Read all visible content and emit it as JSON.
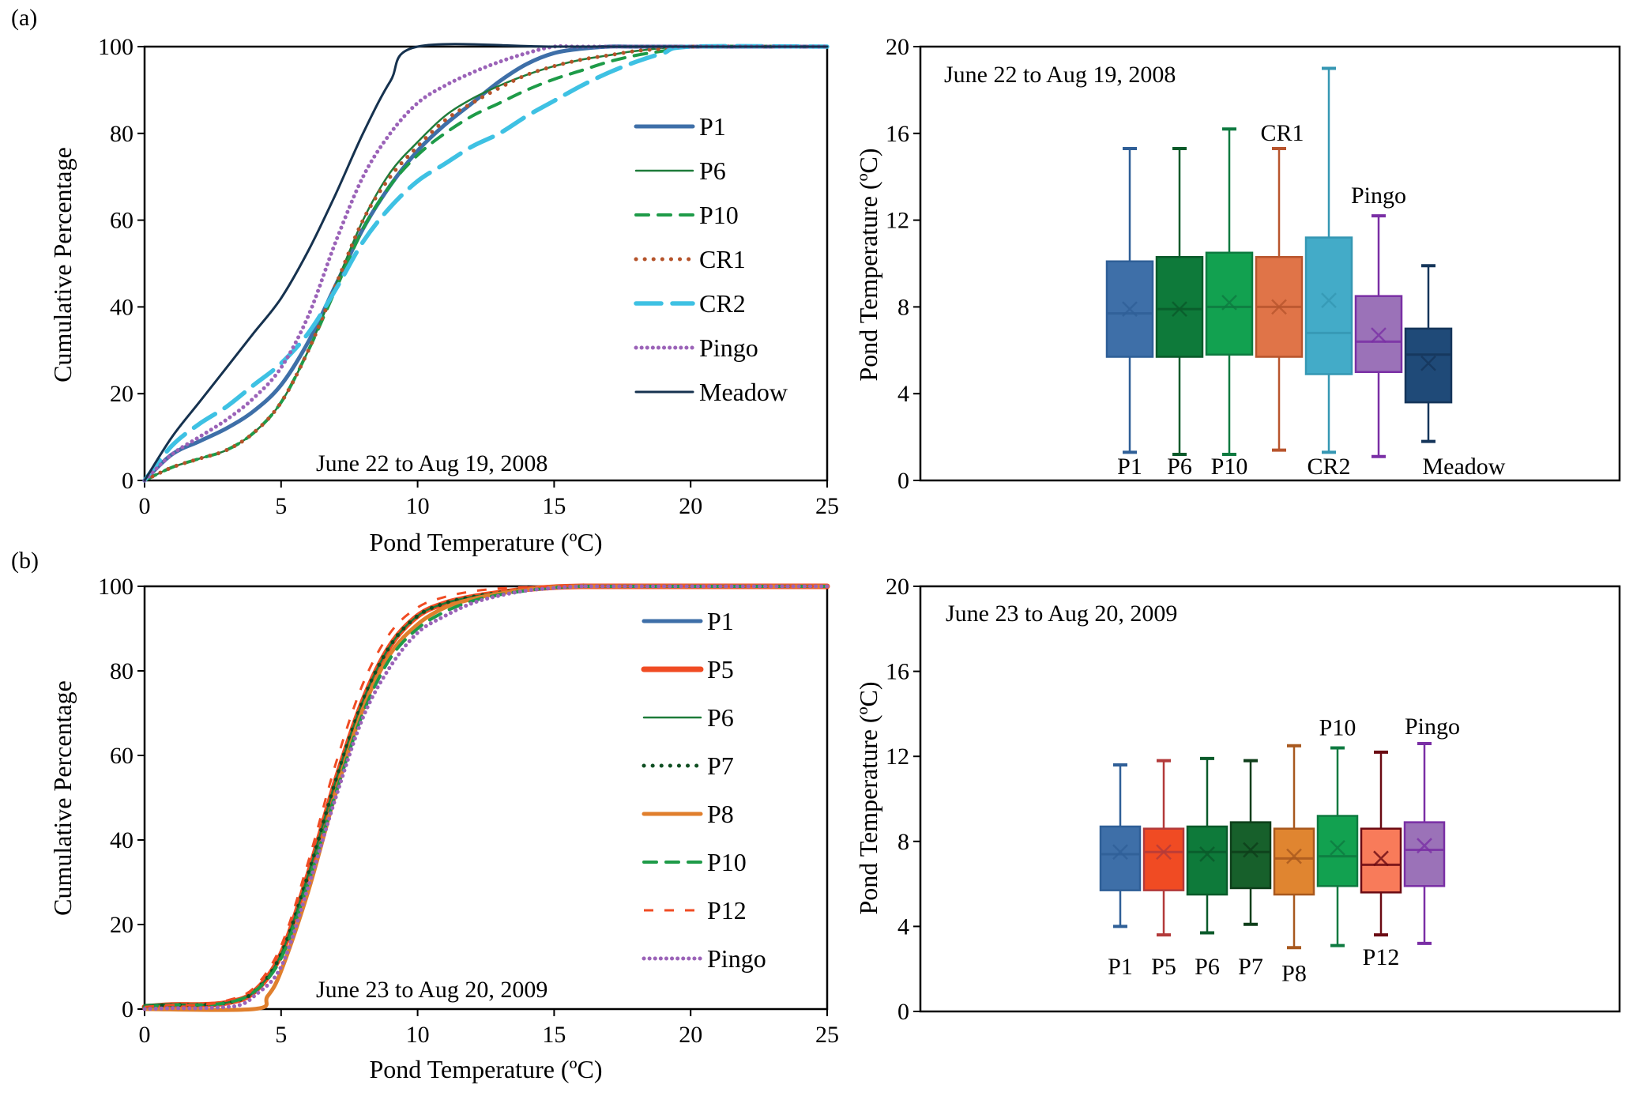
{
  "panels": [
    {
      "label": "(a)"
    },
    {
      "label": "(b)"
    }
  ],
  "chart_data": [
    {
      "id": "a-cdf",
      "type": "line",
      "title": "",
      "annotation": "June 22 to Aug 19, 2008",
      "xlabel": "Pond Temperature (ºC)",
      "ylabel": "Cumulative Percentage",
      "xlim": [
        0,
        25
      ],
      "ylim": [
        0,
        100
      ],
      "xticks": [
        0,
        5,
        10,
        15,
        20,
        25
      ],
      "yticks": [
        0,
        20,
        40,
        60,
        80,
        100
      ],
      "grid": false,
      "legend_position": "right",
      "series": [
        {
          "name": "P1",
          "color": "#3E6FA8",
          "style": "solid-thick",
          "x": [
            0,
            1,
            2,
            3,
            4,
            5,
            6,
            7,
            8,
            9,
            10,
            11,
            12,
            13,
            14,
            15,
            16,
            17,
            18,
            20,
            25
          ],
          "y": [
            0,
            6,
            9,
            12,
            16,
            22,
            32,
            45,
            58,
            68,
            76,
            82,
            87,
            92,
            96,
            98.5,
            99.5,
            100,
            100,
            100,
            100
          ]
        },
        {
          "name": "P6",
          "color": "#1E7B3A",
          "style": "solid-thin",
          "x": [
            0,
            1,
            2,
            3,
            4,
            5,
            6,
            7,
            8,
            9,
            10,
            11,
            12,
            13,
            14,
            15,
            16,
            17,
            18,
            20,
            25
          ],
          "y": [
            0,
            3,
            5,
            7,
            11,
            18,
            30,
            45,
            60,
            71,
            78,
            84,
            88,
            91,
            93.5,
            95.5,
            97,
            98,
            99,
            100,
            100
          ]
        },
        {
          "name": "P10",
          "color": "#1E9B48",
          "style": "dashed",
          "x": [
            0,
            1,
            2,
            3,
            4,
            5,
            6,
            7,
            8,
            9,
            10,
            11,
            12,
            13,
            14,
            15,
            16,
            17,
            18,
            19,
            20,
            25
          ],
          "y": [
            0,
            3,
            5,
            7,
            11,
            18,
            30,
            44,
            58,
            68,
            75,
            80,
            84,
            87,
            90,
            92.5,
            94.5,
            96.5,
            98,
            99,
            100,
            100
          ]
        },
        {
          "name": "CR1",
          "color": "#B5532A",
          "style": "dotted",
          "x": [
            0,
            1,
            2,
            3,
            4,
            5,
            6,
            7,
            8,
            9,
            10,
            11,
            12,
            13,
            14,
            15,
            16,
            17,
            18,
            19,
            20,
            25
          ],
          "y": [
            0,
            3,
            5,
            7,
            11,
            18,
            30,
            45,
            60,
            70,
            77,
            83,
            87,
            90.5,
            93.5,
            95.5,
            97,
            98,
            99,
            99.5,
            100,
            100
          ]
        },
        {
          "name": "CR2",
          "color": "#3EC1E3",
          "style": "long-dashed",
          "x": [
            0,
            1,
            2,
            3,
            4,
            5,
            6,
            7,
            8,
            9,
            10,
            11,
            12,
            13,
            14,
            15,
            16,
            17,
            18,
            19,
            20,
            25
          ],
          "y": [
            0,
            8,
            13,
            17,
            22,
            27,
            34,
            44,
            55,
            63,
            69,
            73,
            77,
            80,
            84,
            87.5,
            91,
            94,
            96.5,
            98.5,
            100,
            100
          ]
        },
        {
          "name": "Pingo",
          "color": "#9B63B8",
          "style": "dotted-fine",
          "x": [
            0,
            1,
            2,
            3,
            4,
            5,
            6,
            7,
            8,
            9,
            10,
            11,
            12,
            13,
            14,
            15,
            16,
            20,
            25
          ],
          "y": [
            0,
            6,
            10,
            14,
            19,
            26,
            38,
            55,
            70,
            80,
            87,
            91,
            94,
            96.5,
            98.5,
            100,
            100,
            100,
            100
          ]
        },
        {
          "name": "Meadow",
          "color": "#16324F",
          "style": "solid-medium",
          "x": [
            0,
            1,
            2,
            3,
            4,
            5,
            6,
            7,
            8,
            9,
            10,
            15,
            20,
            25
          ],
          "y": [
            0,
            10,
            18,
            26,
            34,
            42,
            53,
            66,
            80,
            92,
            100,
            100,
            100,
            100
          ]
        }
      ]
    },
    {
      "id": "a-box",
      "type": "box",
      "annotation": "June 22 to Aug 19, 2008",
      "ylabel": "Pond Temperature (ºC)",
      "ylim": [
        0,
        20
      ],
      "yticks": [
        0,
        4,
        8,
        12,
        16,
        20
      ],
      "grid": false,
      "boxes": [
        {
          "name": "P1",
          "label_pos": "below",
          "color": "#3E6FA8",
          "edge": "#2F5F97",
          "min": 1.3,
          "q1": 5.7,
          "median": 7.7,
          "mean": 7.9,
          "q3": 10.1,
          "max": 15.3
        },
        {
          "name": "P6",
          "label_pos": "below",
          "color": "#0E7A3A",
          "edge": "#0A5A2A",
          "min": 1.2,
          "q1": 5.7,
          "median": 7.9,
          "mean": 7.9,
          "q3": 10.3,
          "max": 15.3
        },
        {
          "name": "P10",
          "label_pos": "below",
          "color": "#12A150",
          "edge": "#0E7A40",
          "min": 1.2,
          "q1": 5.8,
          "median": 8.0,
          "mean": 8.2,
          "q3": 10.5,
          "max": 16.2
        },
        {
          "name": "CR1",
          "label_pos": "above",
          "color": "#E07448",
          "edge": "#B8552D",
          "min": 1.4,
          "q1": 5.7,
          "median": 8.0,
          "mean": 8.0,
          "q3": 10.3,
          "max": 15.3
        },
        {
          "name": "CR2",
          "label_pos": "below",
          "color": "#43ABC8",
          "edge": "#3597B3",
          "min": 1.3,
          "q1": 4.9,
          "median": 6.8,
          "mean": 8.3,
          "q3": 11.2,
          "max": 19.0
        },
        {
          "name": "Pingo",
          "label_pos": "above",
          "color": "#9B72B8",
          "edge": "#7A2FA5",
          "min": 1.1,
          "q1": 5.0,
          "median": 6.4,
          "mean": 6.7,
          "q3": 8.5,
          "max": 12.2
        },
        {
          "name": "Meadow",
          "label_pos": "below",
          "color": "#1F4A78",
          "edge": "#15355A",
          "min": 1.8,
          "q1": 3.6,
          "median": 5.8,
          "mean": 5.4,
          "q3": 7.0,
          "max": 9.9
        }
      ]
    },
    {
      "id": "b-cdf",
      "type": "line",
      "title": "",
      "annotation": "June 23 to Aug 20, 2009",
      "xlabel": "Pond Temperature (ºC)",
      "ylabel": "Cumulative Percentage",
      "xlim": [
        0,
        25
      ],
      "ylim": [
        0,
        100
      ],
      "xticks": [
        0,
        5,
        10,
        15,
        20,
        25
      ],
      "yticks": [
        0,
        20,
        40,
        60,
        80,
        100
      ],
      "grid": false,
      "legend_position": "right",
      "series": [
        {
          "name": "P1",
          "color": "#3E6FA8",
          "style": "solid-thick",
          "x": [
            0,
            1,
            2,
            3,
            4,
            5,
            6,
            7,
            8,
            9,
            10,
            11,
            12,
            13,
            14,
            15,
            16,
            17,
            25
          ],
          "y": [
            0.5,
            1,
            1,
            1.5,
            4,
            13,
            32,
            54,
            73,
            86,
            93,
            96,
            97.5,
            98.5,
            99.3,
            99.8,
            100,
            100,
            100
          ]
        },
        {
          "name": "P5",
          "color": "#F04B23",
          "style": "solid-xthick",
          "x": [
            0,
            1,
            2,
            3,
            4,
            5,
            6,
            7,
            8,
            9,
            10,
            11,
            12,
            13,
            14,
            15,
            16,
            17,
            25
          ],
          "y": [
            0.5,
            1,
            1,
            1.5,
            4,
            13,
            32,
            54,
            73,
            86,
            93,
            96,
            97.5,
            98.5,
            99.3,
            99.8,
            100,
            100,
            100
          ]
        },
        {
          "name": "P6",
          "color": "#1E7B3A",
          "style": "solid-thin",
          "x": [
            0,
            1,
            2,
            3,
            4,
            5,
            6,
            7,
            8,
            9,
            10,
            11,
            12,
            13,
            14,
            15,
            16,
            17,
            25
          ],
          "y": [
            1,
            1.2,
            1,
            1.5,
            4,
            13,
            32,
            54,
            73,
            86,
            93,
            96,
            97.5,
            98.5,
            99.3,
            99.8,
            100,
            100,
            100
          ]
        },
        {
          "name": "P7",
          "color": "#0F4F22",
          "style": "dotted",
          "x": [
            0,
            1,
            2,
            3,
            4,
            5,
            6,
            7,
            8,
            9,
            10,
            11,
            12,
            13,
            14,
            15,
            16,
            17,
            25
          ],
          "y": [
            0.5,
            1,
            1,
            1.5,
            4,
            13,
            32,
            54,
            73,
            86,
            93,
            96,
            97.5,
            98.5,
            99.3,
            99.8,
            100,
            100,
            100
          ]
        },
        {
          "name": "P8",
          "color": "#E07F2D",
          "style": "solid-thick",
          "x": [
            0,
            4,
            4.5,
            5,
            6,
            7,
            8,
            9,
            10,
            11,
            12,
            13,
            14,
            15,
            16,
            17,
            25
          ],
          "y": [
            0,
            0,
            3,
            9,
            28,
            51,
            71,
            84,
            91,
            95,
            97,
            98.3,
            99.2,
            99.8,
            100,
            100,
            100
          ]
        },
        {
          "name": "P10",
          "color": "#1E9B48",
          "style": "dashed",
          "x": [
            0,
            1,
            2,
            3,
            4,
            5,
            6,
            7,
            8,
            9,
            10,
            11,
            12,
            13,
            14,
            15,
            16,
            17,
            25
          ],
          "y": [
            0.5,
            1,
            1,
            1.5,
            4,
            12,
            30,
            51,
            70,
            83,
            90,
            94,
            96.5,
            98,
            99,
            99.7,
            100,
            100,
            100
          ]
        },
        {
          "name": "P12",
          "color": "#F04B23",
          "style": "dashed-thin",
          "x": [
            0,
            1,
            2,
            3,
            4,
            5,
            6,
            7,
            8,
            9,
            10,
            11,
            12,
            13,
            14,
            15,
            16,
            17,
            25
          ],
          "y": [
            0.5,
            1,
            1,
            2,
            5,
            15,
            35,
            58,
            77,
            89,
            95,
            97.5,
            98.8,
            99.5,
            99.8,
            100,
            100,
            100,
            100
          ]
        },
        {
          "name": "Pingo",
          "color": "#9B63B8",
          "style": "dotted-fine",
          "x": [
            0,
            1,
            2,
            3,
            3.5,
            4,
            5,
            6,
            7,
            8,
            9,
            10,
            11,
            12,
            13,
            14,
            15,
            16,
            17,
            25
          ],
          "y": [
            0,
            0.2,
            0.2,
            0.5,
            1,
            3,
            10,
            29,
            50,
            69,
            81,
            89,
            93,
            96,
            97.8,
            99,
            99.6,
            100,
            100,
            100
          ]
        }
      ]
    },
    {
      "id": "b-box",
      "type": "box",
      "annotation": "June 23 to Aug 20, 2009",
      "ylabel": "Pond Temperature (ºC)",
      "ylim": [
        0,
        20
      ],
      "yticks": [
        0,
        4,
        8,
        12,
        16,
        20
      ],
      "grid": false,
      "boxes": [
        {
          "name": "P1",
          "label_pos": "below",
          "color": "#3E6FA8",
          "edge": "#2F5F97",
          "min": 4.0,
          "q1": 5.7,
          "median": 7.4,
          "mean": 7.5,
          "q3": 8.7,
          "max": 11.6
        },
        {
          "name": "P5",
          "label_pos": "below",
          "color": "#F04B23",
          "edge": "#B33A3A",
          "min": 3.6,
          "q1": 5.7,
          "median": 7.5,
          "mean": 7.5,
          "q3": 8.6,
          "max": 11.8
        },
        {
          "name": "P6",
          "label_pos": "below",
          "color": "#0E7A3A",
          "edge": "#0A5A2A",
          "min": 3.7,
          "q1": 5.5,
          "median": 7.5,
          "mean": 7.4,
          "q3": 8.7,
          "max": 11.9
        },
        {
          "name": "P7",
          "label_pos": "below",
          "color": "#17602B",
          "edge": "#0E3E1A",
          "min": 4.1,
          "q1": 5.8,
          "median": 7.5,
          "mean": 7.6,
          "q3": 8.9,
          "max": 11.8
        },
        {
          "name": "P8",
          "label_pos": "below",
          "color": "#E08530",
          "edge": "#A8581E",
          "min": 3.0,
          "q1": 5.5,
          "median": 7.2,
          "mean": 7.3,
          "q3": 8.6,
          "max": 12.5
        },
        {
          "name": "P10",
          "label_pos": "above",
          "color": "#12A150",
          "edge": "#0E7A40",
          "min": 3.1,
          "q1": 5.9,
          "median": 7.3,
          "mean": 7.7,
          "q3": 9.2,
          "max": 12.4
        },
        {
          "name": "P12",
          "label_pos": "below",
          "color": "#F87B5A",
          "edge": "#6B0A12",
          "min": 3.6,
          "q1": 5.6,
          "median": 6.9,
          "mean": 7.2,
          "q3": 8.6,
          "max": 12.2
        },
        {
          "name": "Pingo",
          "label_pos": "above",
          "color": "#9B72B8",
          "edge": "#7A2FA5",
          "min": 3.2,
          "q1": 5.9,
          "median": 7.6,
          "mean": 7.8,
          "q3": 8.9,
          "max": 12.6
        }
      ]
    }
  ]
}
